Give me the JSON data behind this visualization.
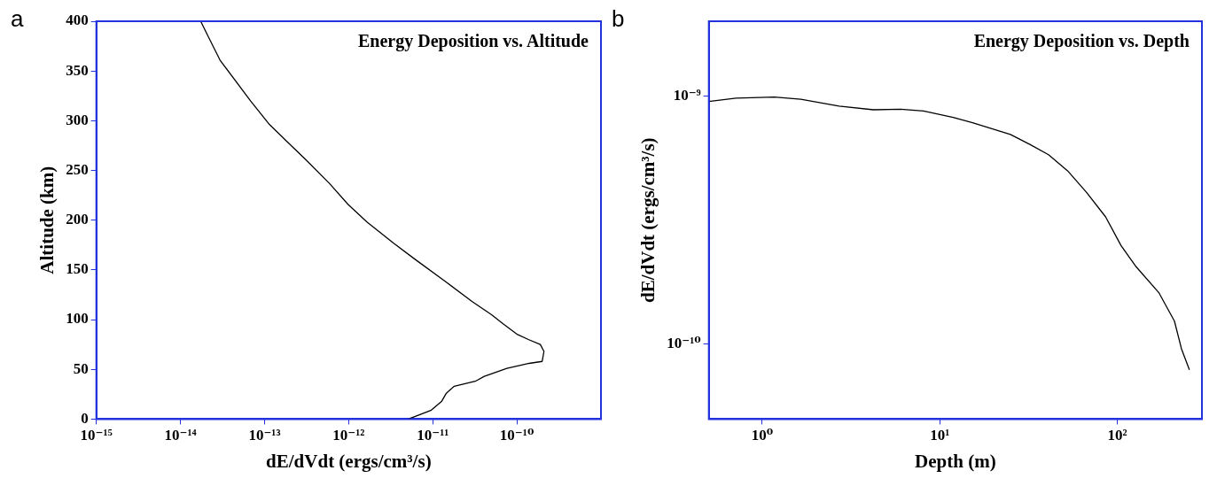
{
  "chart_data": [
    {
      "type": "line",
      "title": "Energy Deposition vs. Altitude",
      "xlabel": "dE/dVdt (ergs/cm³/s)",
      "ylabel": "Altitude (km)",
      "annotations": [
        "a"
      ],
      "log": "x",
      "grid": false,
      "legend": false,
      "marker": "none",
      "line_style": "solid",
      "xlim": [
        1e-15,
        1e-09
      ],
      "ylim": [
        0,
        400
      ],
      "xticks": [
        {
          "value": 1e-15,
          "label": "10⁻¹⁵"
        },
        {
          "value": 1e-14,
          "label": "10⁻¹⁴"
        },
        {
          "value": 1e-13,
          "label": "10⁻¹³"
        },
        {
          "value": 1e-12,
          "label": "10⁻¹²"
        },
        {
          "value": 1e-11,
          "label": "10⁻¹¹"
        },
        {
          "value": 1e-10,
          "label": "10⁻¹⁰"
        }
      ],
      "yticks": [
        0,
        50,
        100,
        150,
        200,
        250,
        300,
        350,
        400
      ],
      "series": [
        {
          "color": "#000000",
          "x": [
            1.74e-14,
            2.1e-14,
            2.95e-14,
            6.8e-14,
            1.12e-13,
            1.9e-13,
            3.16e-13,
            5.9e-13,
            9.8e-13,
            1.66e-12,
            3.4e-12,
            6.3e-12,
            1.38e-11,
            2.95e-11,
            5e-11,
            6.8e-11,
            1.02e-10,
            1.37e-10,
            1.9e-10,
            2.1e-10,
            2e-10,
            1.4e-10,
            7.6e-11,
            4.1e-11,
            3.2e-11,
            1.8e-11,
            1.45e-11,
            1.28e-11,
            9.6e-12,
            6.3e-12,
            5.1e-12
          ],
          "values": [
            400,
            386,
            361,
            320,
            297,
            278,
            260,
            237,
            216,
            198,
            177,
            160,
            139,
            118,
            105,
            96,
            85,
            80,
            75,
            68,
            58,
            56,
            51,
            43,
            38,
            33,
            26,
            18,
            9,
            3,
            0
          ]
        }
      ]
    },
    {
      "type": "line",
      "title": "Energy Deposition vs. Depth",
      "xlabel": "Depth (m)",
      "ylabel": "dE/dVdt (ergs/cm³/s)",
      "annotations": [
        "b"
      ],
      "log": "xy",
      "grid": false,
      "legend": false,
      "marker": "none",
      "line_style": "solid",
      "xlim": [
        0.5,
        300
      ],
      "ylim": [
        5e-11,
        2e-09
      ],
      "xticks": [
        {
          "value": 1,
          "label": "10⁰"
        },
        {
          "value": 10,
          "label": "10¹"
        },
        {
          "value": 100,
          "label": "10²"
        }
      ],
      "yticks": [
        {
          "value": 1e-10,
          "label": "10⁻¹⁰"
        },
        {
          "value": 1e-09,
          "label": "10⁻⁹"
        }
      ],
      "series": [
        {
          "color": "#000000",
          "x": [
            0.5,
            0.71,
            1.17,
            1.65,
            2.71,
            4.23,
            5.98,
            8.1,
            11.9,
            15.3,
            25,
            32,
            41,
            52.5,
            67,
            86,
            105,
            128,
            172,
            210,
            230,
            255
          ],
          "values": [
            9.5e-10,
            9.8e-10,
            9.9e-10,
            9.7e-10,
            9.1e-10,
            8.8e-10,
            8.85e-10,
            8.7e-10,
            8.2e-10,
            7.8e-10,
            7e-10,
            6.4e-10,
            5.8e-10,
            5e-10,
            4.1e-10,
            3.26e-10,
            2.5e-10,
            2.05e-10,
            1.61e-10,
            1.24e-10,
            9.6e-11,
            7.9e-11
          ]
        }
      ]
    }
  ]
}
